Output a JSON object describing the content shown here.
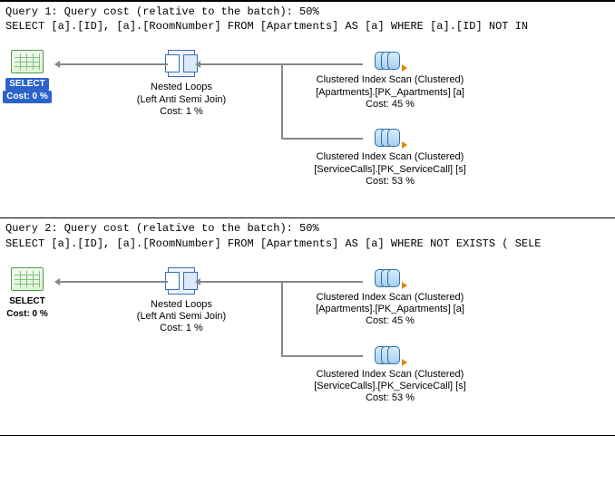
{
  "queries": [
    {
      "header_line1": "Query 1: Query cost (relative to the batch): 50%",
      "header_line2": "SELECT [a].[ID], [a].[RoomNumber] FROM [Apartments] AS [a] WHERE [a].[ID] NOT IN",
      "select_highlight": true,
      "select": {
        "label": "SELECT",
        "cost": "Cost: 0 %"
      },
      "nested_loops": {
        "line1": "Nested Loops",
        "line2": "(Left Anti Semi Join)",
        "cost": "Cost: 1 %"
      },
      "scan_top": {
        "line1": "Clustered Index Scan (Clustered)",
        "line2": "[Apartments].[PK_Apartments] [a]",
        "cost": "Cost: 45 %"
      },
      "scan_bottom": {
        "line1": "Clustered Index Scan (Clustered)",
        "line2": "[ServiceCalls].[PK_ServiceCall] [s]",
        "cost": "Cost: 53 %"
      }
    },
    {
      "header_line1": "Query 2: Query cost (relative to the batch): 50%",
      "header_line2": "SELECT [a].[ID], [a].[RoomNumber] FROM [Apartments] AS [a] WHERE NOT EXISTS ( SELE",
      "select_highlight": false,
      "select": {
        "label": "SELECT",
        "cost": "Cost: 0 %"
      },
      "nested_loops": {
        "line1": "Nested Loops",
        "line2": "(Left Anti Semi Join)",
        "cost": "Cost: 1 %"
      },
      "scan_top": {
        "line1": "Clustered Index Scan (Clustered)",
        "line2": "[Apartments].[PK_Apartments] [a]",
        "cost": "Cost: 45 %"
      },
      "scan_bottom": {
        "line1": "Clustered Index Scan (Clustered)",
        "line2": "[ServiceCalls].[PK_ServiceCall] [s]",
        "cost": "Cost: 53 %"
      }
    }
  ]
}
